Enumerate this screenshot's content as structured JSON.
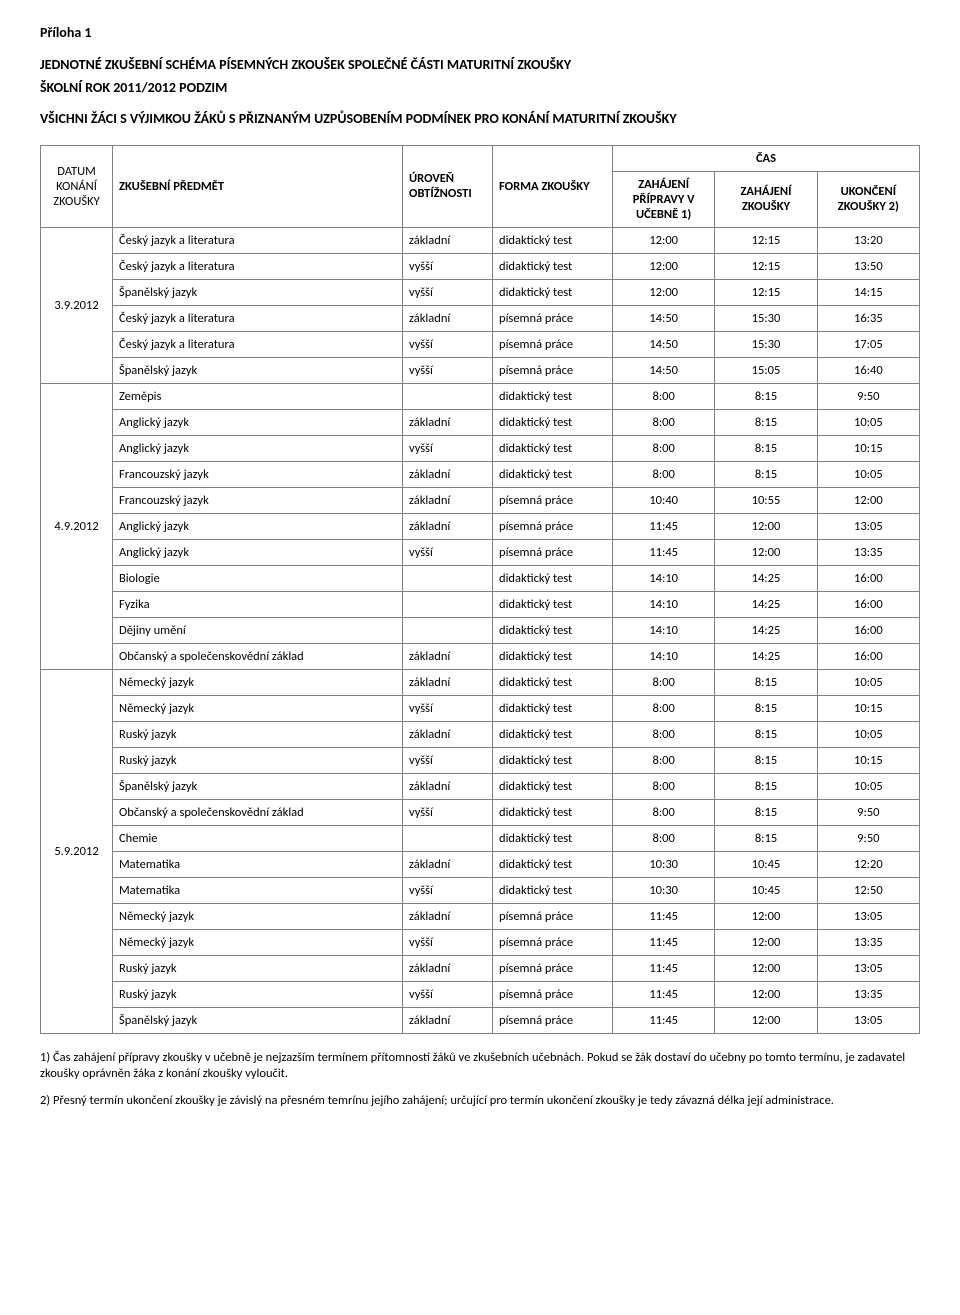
{
  "attachment": "Příloha 1",
  "title": "JEDNOTNÉ ZKUŠEBNÍ SCHÉMA PÍSEMNÝCH ZKOUŠEK SPOLEČNÉ ČÁSTI MATURITNÍ ZKOUŠKY",
  "subtitle": "ŠKOLNÍ ROK 2011/2012   PODZIM",
  "line3": "VŠICHNI ŽÁCI S VÝJIMKOU ŽÁKŮ S PŘIZNANÝM UZPŮSOBENÍM PODMÍNEK PRO KONÁNÍ MATURITNÍ ZKOUŠKY",
  "headers": {
    "date": "DATUM KONÁNÍ ZKOUŠKY",
    "subject": "ZKUŠEBNÍ PŘEDMĚT",
    "level": "ÚROVEŇ OBTÍŽNOSTI",
    "form": "FORMA ZKOUŠKY",
    "cas": "ČAS",
    "start_prep": "ZAHÁJENÍ PŘÍPRAVY V UČEBNĚ 1)",
    "start_exam": "ZAHÁJENÍ ZKOUŠKY",
    "end_exam": "UKONČENÍ ZKOUŠKY 2)"
  },
  "groups": [
    {
      "date": "3.9.2012",
      "rows": [
        {
          "subj": "Český jazyk a literatura",
          "lvl": "základní",
          "form": "didaktický test",
          "t1": "12:00",
          "t2": "12:15",
          "t3": "13:20"
        },
        {
          "subj": "Český jazyk a literatura",
          "lvl": "vyšší",
          "form": "didaktický test",
          "t1": "12:00",
          "t2": "12:15",
          "t3": "13:50"
        },
        {
          "subj": "Španělský jazyk",
          "lvl": "vyšší",
          "form": "didaktický test",
          "t1": "12:00",
          "t2": "12:15",
          "t3": "14:15"
        },
        {
          "subj": "Český jazyk a literatura",
          "lvl": "základní",
          "form": "písemná práce",
          "t1": "14:50",
          "t2": "15:30",
          "t3": "16:35"
        },
        {
          "subj": "Český jazyk a literatura",
          "lvl": "vyšší",
          "form": "písemná práce",
          "t1": "14:50",
          "t2": "15:30",
          "t3": "17:05"
        },
        {
          "subj": "Španělský jazyk",
          "lvl": "vyšší",
          "form": "písemná práce",
          "t1": "14:50",
          "t2": "15:05",
          "t3": "16:40"
        }
      ]
    },
    {
      "date": "4.9.2012",
      "rows": [
        {
          "subj": "Zeměpis",
          "lvl": "",
          "form": "didaktický test",
          "t1": "8:00",
          "t2": "8:15",
          "t3": "9:50"
        },
        {
          "subj": "Anglický jazyk",
          "lvl": "základní",
          "form": "didaktický test",
          "t1": "8:00",
          "t2": "8:15",
          "t3": "10:05"
        },
        {
          "subj": "Anglický jazyk",
          "lvl": "vyšší",
          "form": "didaktický test",
          "t1": "8:00",
          "t2": "8:15",
          "t3": "10:15"
        },
        {
          "subj": "Francouzský jazyk",
          "lvl": "základní",
          "form": "didaktický test",
          "t1": "8:00",
          "t2": "8:15",
          "t3": "10:05"
        },
        {
          "subj": "Francouzský jazyk",
          "lvl": "základní",
          "form": "písemná práce",
          "t1": "10:40",
          "t2": "10:55",
          "t3": "12:00"
        },
        {
          "subj": "Anglický jazyk",
          "lvl": "základní",
          "form": "písemná práce",
          "t1": "11:45",
          "t2": "12:00",
          "t3": "13:05"
        },
        {
          "subj": "Anglický jazyk",
          "lvl": "vyšší",
          "form": "písemná práce",
          "t1": "11:45",
          "t2": "12:00",
          "t3": "13:35"
        },
        {
          "subj": "Biologie",
          "lvl": "",
          "form": "didaktický test",
          "t1": "14:10",
          "t2": "14:25",
          "t3": "16:00"
        },
        {
          "subj": "Fyzika",
          "lvl": "",
          "form": "didaktický test",
          "t1": "14:10",
          "t2": "14:25",
          "t3": "16:00"
        },
        {
          "subj": "Dějiny umění",
          "lvl": "",
          "form": "didaktický test",
          "t1": "14:10",
          "t2": "14:25",
          "t3": "16:00"
        },
        {
          "subj": "Občanský a společenskovědní základ",
          "lvl": "základní",
          "form": "didaktický test",
          "t1": "14:10",
          "t2": "14:25",
          "t3": "16:00"
        }
      ]
    },
    {
      "date": "5.9.2012",
      "rows": [
        {
          "subj": "Německý jazyk",
          "lvl": "základní",
          "form": "didaktický test",
          "t1": "8:00",
          "t2": "8:15",
          "t3": "10:05"
        },
        {
          "subj": "Německý jazyk",
          "lvl": "vyšší",
          "form": "didaktický test",
          "t1": "8:00",
          "t2": "8:15",
          "t3": "10:15"
        },
        {
          "subj": "Ruský jazyk",
          "lvl": "základní",
          "form": "didaktický test",
          "t1": "8:00",
          "t2": "8:15",
          "t3": "10:05"
        },
        {
          "subj": "Ruský jazyk",
          "lvl": "vyšší",
          "form": "didaktický test",
          "t1": "8:00",
          "t2": "8:15",
          "t3": "10:15"
        },
        {
          "subj": "Španělský jazyk",
          "lvl": "základní",
          "form": "didaktický test",
          "t1": "8:00",
          "t2": "8:15",
          "t3": "10:05"
        },
        {
          "subj": "Občanský a společenskovědní základ",
          "lvl": "vyšší",
          "form": "didaktický test",
          "t1": "8:00",
          "t2": "8:15",
          "t3": "9:50"
        },
        {
          "subj": "Chemie",
          "lvl": "",
          "form": "didaktický test",
          "t1": "8:00",
          "t2": "8:15",
          "t3": "9:50"
        },
        {
          "subj": "Matematika",
          "lvl": "základní",
          "form": "didaktický test",
          "t1": "10:30",
          "t2": "10:45",
          "t3": "12:20"
        },
        {
          "subj": "Matematika",
          "lvl": "vyšší",
          "form": "didaktický test",
          "t1": "10:30",
          "t2": "10:45",
          "t3": "12:50"
        },
        {
          "subj": "Německý jazyk",
          "lvl": "základní",
          "form": "písemná práce",
          "t1": "11:45",
          "t2": "12:00",
          "t3": "13:05"
        },
        {
          "subj": "Německý jazyk",
          "lvl": "vyšší",
          "form": "písemná práce",
          "t1": "11:45",
          "t2": "12:00",
          "t3": "13:35"
        },
        {
          "subj": "Ruský jazyk",
          "lvl": "základní",
          "form": "písemná práce",
          "t1": "11:45",
          "t2": "12:00",
          "t3": "13:05"
        },
        {
          "subj": "Ruský jazyk",
          "lvl": "vyšší",
          "form": "písemná práce",
          "t1": "11:45",
          "t2": "12:00",
          "t3": "13:35"
        },
        {
          "subj": "Španělský jazyk",
          "lvl": "základní",
          "form": "písemná práce",
          "t1": "11:45",
          "t2": "12:00",
          "t3": "13:05"
        }
      ]
    }
  ],
  "footnotes": {
    "f1": "1) Čas zahájení přípravy zkoušky v učebně je nejzazším termínem přítomnosti žáků ve zkušebních učebnách. Pokud se žák dostaví do učebny po tomto termínu, je zadavatel zkoušky oprávněn žáka z konání zkoušky vyloučit.",
    "f2": "2) Přesný termín ukončení zkoušky je závislý na přesném temrínu jejího zahájení; určující pro termín ukončení zkoušky je tedy závazná délka její administrace."
  }
}
